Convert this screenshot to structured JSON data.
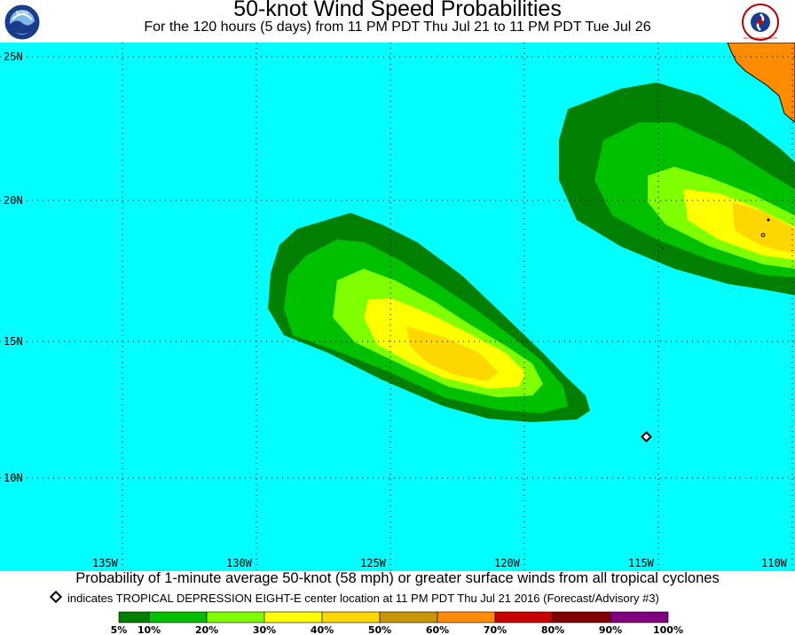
{
  "header": {
    "title": "50-knot Wind Speed Probabilities",
    "subtitle": "For the 120 hours (5 days) from 11 PM PDT Thu Jul 21 to 11 PM PDT Tue Jul 26"
  },
  "logos": {
    "left": "NOAA",
    "right": "NATIONAL WEATHER SERVICE"
  },
  "map": {
    "ocean_color": "#00ffff",
    "land_color": "#ff8c00",
    "lat_labels": [
      "25N",
      "20N",
      "15N",
      "10N"
    ],
    "lon_labels": [
      "135W",
      "130W",
      "125W",
      "120W",
      "115W",
      "110W"
    ]
  },
  "caption": "Probability of 1-minute average 50-knot (58 mph) or greater surface winds from all tropical cyclones",
  "indicator": "indicates TROPICAL DEPRESSION EIGHT-E center location at 11 PM PDT Thu Jul 21 2016 (Forecast/Advisory #3)",
  "legend": {
    "colors": [
      "#007f00",
      "#00c000",
      "#80ff00",
      "#ffff00",
      "#ffd700",
      "#c89600",
      "#ff8c00",
      "#c80000",
      "#800000",
      "#800080"
    ],
    "labels": [
      "5%",
      "10%",
      "20%",
      "30%",
      "40%",
      "50%",
      "60%",
      "70%",
      "80%",
      "90%",
      "100%"
    ]
  }
}
